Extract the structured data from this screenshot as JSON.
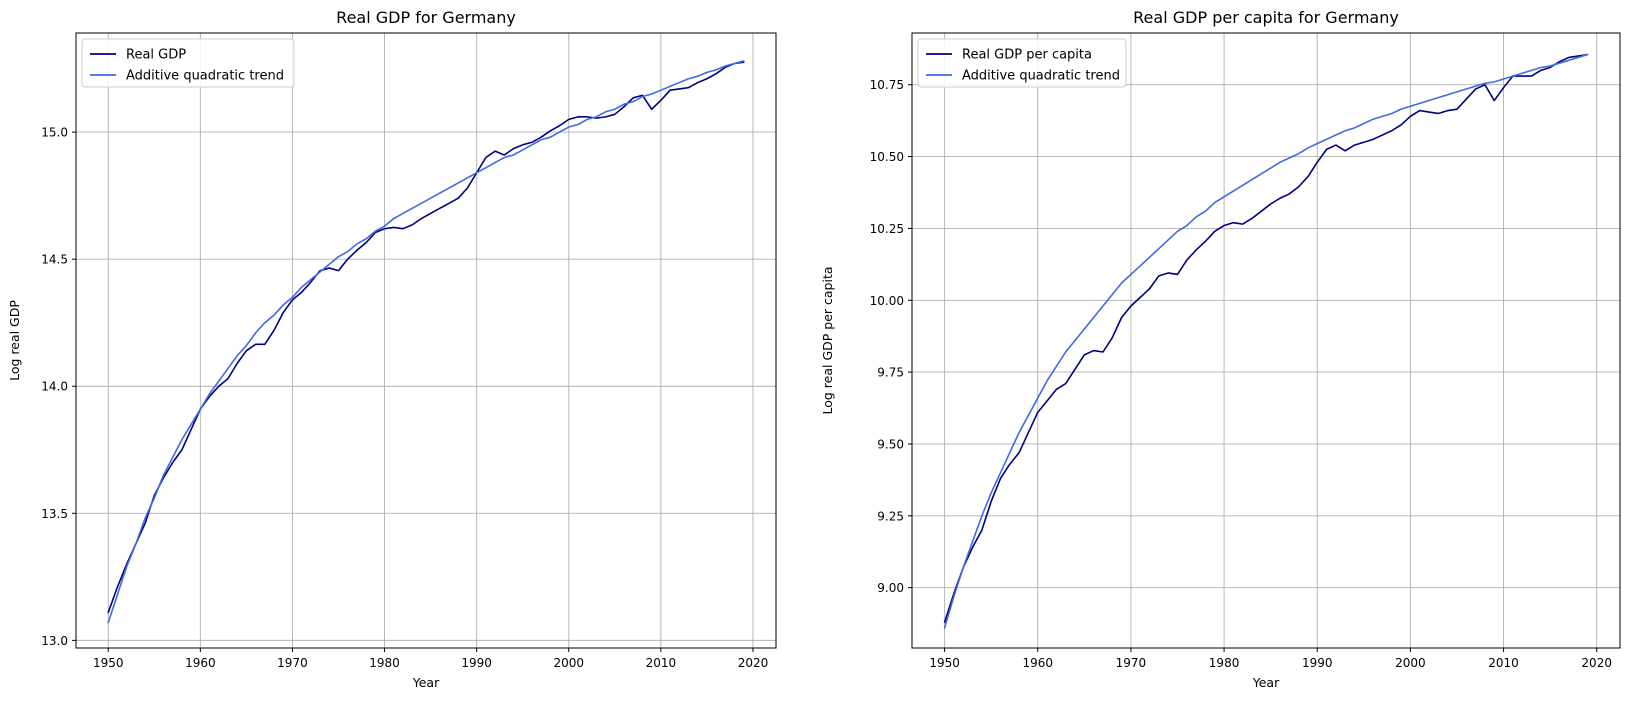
{
  "chart_data": [
    {
      "type": "line",
      "title": "Real GDP for Germany",
      "xlabel": "Year",
      "ylabel": "Log real GDP",
      "xlim": [
        1946.5,
        2022.5
      ],
      "ylim": [
        12.97,
        15.39
      ],
      "xticks": [
        1950,
        1960,
        1970,
        1980,
        1990,
        2000,
        2010,
        2020
      ],
      "xtick_labels": [
        "1950",
        "1960",
        "1970",
        "1980",
        "1990",
        "2000",
        "2010",
        "2020"
      ],
      "yticks": [
        13.0,
        13.5,
        14.0,
        14.5,
        15.0
      ],
      "ytick_labels": [
        "13.0",
        "13.5",
        "14.0",
        "14.5",
        "15.0"
      ],
      "grid": true,
      "legend_position": "upper-left",
      "series": [
        {
          "name": "Real GDP",
          "color": "#000080",
          "x": [
            1950,
            1951,
            1952,
            1953,
            1954,
            1955,
            1956,
            1957,
            1958,
            1959,
            1960,
            1961,
            1962,
            1963,
            1964,
            1965,
            1966,
            1967,
            1968,
            1969,
            1970,
            1971,
            1972,
            1973,
            1974,
            1975,
            1976,
            1977,
            1978,
            1979,
            1980,
            1981,
            1982,
            1983,
            1984,
            1985,
            1986,
            1987,
            1988,
            1989,
            1990,
            1991,
            1992,
            1993,
            1994,
            1995,
            1996,
            1997,
            1998,
            1999,
            2000,
            2001,
            2002,
            2003,
            2004,
            2005,
            2006,
            2007,
            2008,
            2009,
            2010,
            2011,
            2012,
            2013,
            2014,
            2015,
            2016,
            2017,
            2018,
            2019
          ],
          "y": [
            13.11,
            13.21,
            13.3,
            13.38,
            13.46,
            13.57,
            13.64,
            13.7,
            13.75,
            13.83,
            13.91,
            13.96,
            14.0,
            14.03,
            14.09,
            14.14,
            14.165,
            14.165,
            14.22,
            14.29,
            14.34,
            14.37,
            14.41,
            14.455,
            14.465,
            14.455,
            14.5,
            14.535,
            14.565,
            14.605,
            14.62,
            14.625,
            14.62,
            14.635,
            14.66,
            14.68,
            14.7,
            14.72,
            14.74,
            14.78,
            14.84,
            14.9,
            14.925,
            14.91,
            14.935,
            14.95,
            14.96,
            14.98,
            15.005,
            15.025,
            15.05,
            15.06,
            15.06,
            15.055,
            15.06,
            15.07,
            15.1,
            15.135,
            15.145,
            15.09,
            15.125,
            15.165,
            15.17,
            15.175,
            15.195,
            15.21,
            15.23,
            15.255,
            15.27,
            15.275
          ]
        },
        {
          "name": "Additive quadratic trend",
          "color": "#4169E1",
          "x": [
            1950,
            1951,
            1952,
            1953,
            1954,
            1955,
            1956,
            1957,
            1958,
            1959,
            1960,
            1961,
            1962,
            1963,
            1964,
            1965,
            1966,
            1967,
            1968,
            1969,
            1970,
            1971,
            1972,
            1973,
            1974,
            1975,
            1976,
            1977,
            1978,
            1979,
            1980,
            1981,
            1982,
            1983,
            1984,
            1985,
            1986,
            1987,
            1988,
            1989,
            1990,
            1991,
            1992,
            1993,
            1994,
            1995,
            1996,
            1997,
            1998,
            1999,
            2000,
            2001,
            2002,
            2003,
            2004,
            2005,
            2006,
            2007,
            2008,
            2009,
            2010,
            2011,
            2012,
            2013,
            2014,
            2015,
            2016,
            2017,
            2018,
            2019
          ],
          "y": [
            13.07,
            13.18,
            13.29,
            13.38,
            13.48,
            13.56,
            13.65,
            13.72,
            13.79,
            13.85,
            13.91,
            13.97,
            14.02,
            14.07,
            14.12,
            14.16,
            14.21,
            14.25,
            14.28,
            14.32,
            14.35,
            14.39,
            14.42,
            14.45,
            14.48,
            14.51,
            14.53,
            14.56,
            14.58,
            14.61,
            14.63,
            14.66,
            14.68,
            14.7,
            14.72,
            14.74,
            14.76,
            14.78,
            14.8,
            14.82,
            14.84,
            14.86,
            14.88,
            14.9,
            14.91,
            14.93,
            14.95,
            14.97,
            14.98,
            15.0,
            15.02,
            15.03,
            15.05,
            15.06,
            15.08,
            15.09,
            15.11,
            15.12,
            15.14,
            15.15,
            15.165,
            15.18,
            15.195,
            15.21,
            15.22,
            15.235,
            15.245,
            15.26,
            15.27,
            15.28
          ]
        }
      ]
    },
    {
      "type": "line",
      "title": "Real GDP per capita for Germany",
      "xlabel": "Year",
      "ylabel": "Log real GDP per capita",
      "xlim": [
        1946.5,
        2022.5
      ],
      "ylim": [
        8.79,
        10.93
      ],
      "xticks": [
        1950,
        1960,
        1970,
        1980,
        1990,
        2000,
        2010,
        2020
      ],
      "xtick_labels": [
        "1950",
        "1960",
        "1970",
        "1980",
        "1990",
        "2000",
        "2010",
        "2020"
      ],
      "yticks": [
        9.0,
        9.25,
        9.5,
        9.75,
        10.0,
        10.25,
        10.5,
        10.75
      ],
      "ytick_labels": [
        "9.00",
        "9.25",
        "9.50",
        "9.75",
        "10.00",
        "10.25",
        "10.50",
        "10.75"
      ],
      "grid": true,
      "legend_position": "upper-left",
      "series": [
        {
          "name": "Real GDP per capita",
          "color": "#000080",
          "x": [
            1950,
            1951,
            1952,
            1953,
            1954,
            1955,
            1956,
            1957,
            1958,
            1959,
            1960,
            1961,
            1962,
            1963,
            1964,
            1965,
            1966,
            1967,
            1968,
            1969,
            1970,
            1971,
            1972,
            1973,
            1974,
            1975,
            1976,
            1977,
            1978,
            1979,
            1980,
            1981,
            1982,
            1983,
            1984,
            1985,
            1986,
            1987,
            1988,
            1989,
            1990,
            1991,
            1992,
            1993,
            1994,
            1995,
            1996,
            1997,
            1998,
            1999,
            2000,
            2001,
            2002,
            2003,
            2004,
            2005,
            2006,
            2007,
            2008,
            2009,
            2010,
            2011,
            2012,
            2013,
            2014,
            2015,
            2016,
            2017,
            2018,
            2019
          ],
          "y": [
            8.88,
            8.98,
            9.07,
            9.14,
            9.2,
            9.3,
            9.38,
            9.43,
            9.47,
            9.54,
            9.61,
            9.65,
            9.69,
            9.71,
            9.76,
            9.81,
            9.825,
            9.82,
            9.87,
            9.94,
            9.98,
            10.01,
            10.04,
            10.085,
            10.095,
            10.09,
            10.14,
            10.175,
            10.205,
            10.24,
            10.26,
            10.27,
            10.265,
            10.285,
            10.31,
            10.335,
            10.355,
            10.37,
            10.395,
            10.43,
            10.48,
            10.525,
            10.54,
            10.52,
            10.54,
            10.55,
            10.56,
            10.575,
            10.59,
            10.61,
            10.64,
            10.66,
            10.655,
            10.65,
            10.66,
            10.665,
            10.7,
            10.735,
            10.75,
            10.695,
            10.74,
            10.78,
            10.78,
            10.78,
            10.8,
            10.81,
            10.83,
            10.845,
            10.85,
            10.855
          ]
        },
        {
          "name": "Additive quadratic trend",
          "color": "#4169E1",
          "x": [
            1950,
            1951,
            1952,
            1953,
            1954,
            1955,
            1956,
            1957,
            1958,
            1959,
            1960,
            1961,
            1962,
            1963,
            1964,
            1965,
            1966,
            1967,
            1968,
            1969,
            1970,
            1971,
            1972,
            1973,
            1974,
            1975,
            1976,
            1977,
            1978,
            1979,
            1980,
            1981,
            1982,
            1983,
            1984,
            1985,
            1986,
            1987,
            1988,
            1989,
            1990,
            1991,
            1992,
            1993,
            1994,
            1995,
            1996,
            1997,
            1998,
            1999,
            2000,
            2001,
            2002,
            2003,
            2004,
            2005,
            2006,
            2007,
            2008,
            2009,
            2010,
            2011,
            2012,
            2013,
            2014,
            2015,
            2016,
            2017,
            2018,
            2019
          ],
          "y": [
            8.86,
            8.97,
            9.07,
            9.16,
            9.25,
            9.33,
            9.4,
            9.47,
            9.54,
            9.6,
            9.66,
            9.72,
            9.77,
            9.82,
            9.86,
            9.9,
            9.94,
            9.98,
            10.02,
            10.06,
            10.09,
            10.12,
            10.15,
            10.18,
            10.21,
            10.24,
            10.26,
            10.29,
            10.31,
            10.34,
            10.36,
            10.38,
            10.4,
            10.42,
            10.44,
            10.46,
            10.48,
            10.495,
            10.51,
            10.53,
            10.545,
            10.56,
            10.575,
            10.59,
            10.6,
            10.615,
            10.63,
            10.64,
            10.65,
            10.665,
            10.675,
            10.685,
            10.695,
            10.705,
            10.715,
            10.725,
            10.735,
            10.745,
            10.755,
            10.76,
            10.77,
            10.78,
            10.79,
            10.8,
            10.81,
            10.815,
            10.825,
            10.835,
            10.845,
            10.855
          ]
        }
      ]
    }
  ]
}
